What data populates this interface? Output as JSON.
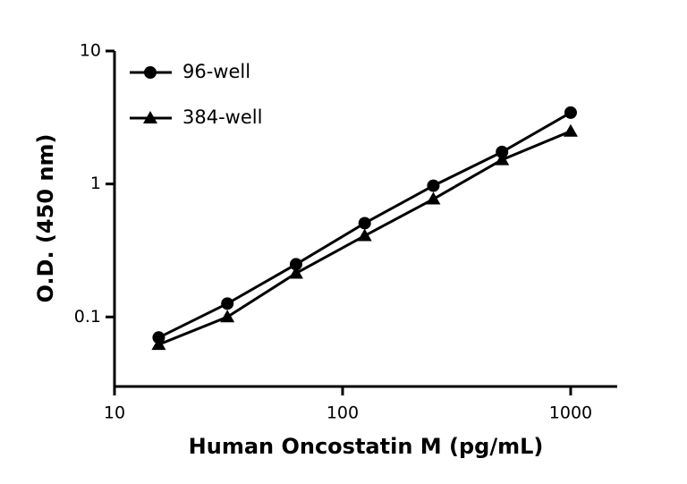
{
  "chart_data": {
    "type": "line",
    "x_label": "Human Oncostatin M (pg/mL)",
    "y_label": "O.D. (450 nm)",
    "x": [
      15.625,
      31.25,
      62.5,
      125,
      250,
      500,
      1000
    ],
    "series": [
      {
        "name": "96-well",
        "color": "#000000",
        "marker": "circle",
        "values": [
          0.07,
          0.126,
          0.249,
          0.507,
          0.97,
          1.74,
          3.44
        ]
      },
      {
        "name": "384-well",
        "color": "#000000",
        "marker": "triangle",
        "values": [
          0.062,
          0.1,
          0.213,
          0.408,
          0.77,
          1.52,
          2.49
        ]
      }
    ],
    "xlim": [
      10,
      1600
    ],
    "ylim": [
      0.03,
      10
    ],
    "xticks": [
      10,
      100,
      1000
    ],
    "yticks": [
      0.1,
      1,
      10
    ],
    "xlog": true,
    "ylog": true,
    "grid": false,
    "legend": "upper left"
  }
}
